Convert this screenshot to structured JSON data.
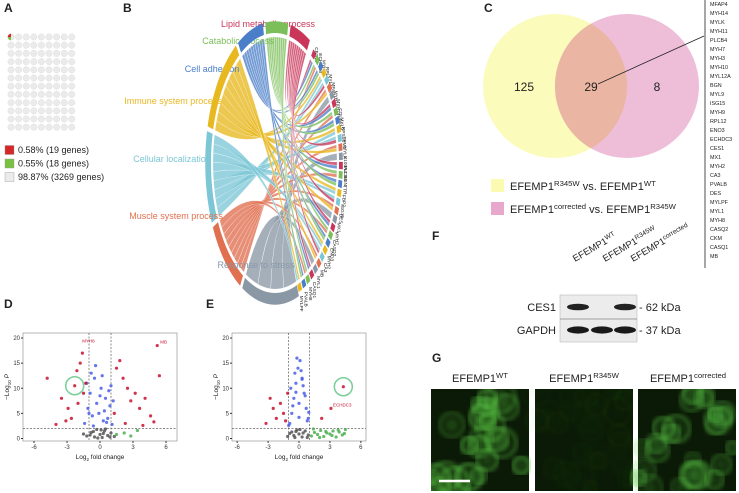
{
  "panel_labels": [
    "A",
    "B",
    "C",
    "D",
    "E",
    "F",
    "G"
  ],
  "waffle": {
    "legend": [
      {
        "label": "0.58% (19 genes)",
        "color": "#d62728"
      },
      {
        "label": "0.55% (18 genes)",
        "color": "#7ac142"
      },
      {
        "label": "98.87% (3269 genes)",
        "color": "#ebebeb"
      }
    ]
  },
  "chord": {
    "processes": [
      {
        "name": "Lipid metabolic process",
        "color": "#c9365a"
      },
      {
        "name": "Catabolic process",
        "color": "#7cbf5a"
      },
      {
        "name": "Cell adhesion",
        "color": "#4a7ec8"
      },
      {
        "name": "Immune system process",
        "color": "#e8b820"
      },
      {
        "name": "Cellular localization",
        "color": "#7cc6d6"
      },
      {
        "name": "Muscle system process",
        "color": "#e07050"
      },
      {
        "name": "Response to stress",
        "color": "#8a98a6"
      }
    ],
    "genes": [
      "CES1",
      "ECHDC3",
      "MYH11",
      "RPL12",
      "MYL12A",
      "MFAP4",
      "MYH10",
      "MYH14",
      "COL4A1",
      "MYL9",
      "RPS15",
      "TPM1",
      "MYLK",
      "S100A4",
      "PLCB4",
      "BGN",
      "TTR",
      "FBP2",
      "ISG15",
      "DES",
      "MX1",
      "MYH7",
      "CASQ2",
      "ENO3",
      "MYH2",
      "CA3",
      "MB",
      "MYL1",
      "CASQ1",
      "MYH8",
      "PVALB",
      "MYLPF"
    ]
  },
  "venn": {
    "counts": [
      125,
      29,
      8
    ],
    "colors": [
      "#fafab0",
      "#e8a8cc"
    ],
    "overlap_genes": [
      "MFAP4",
      "MYH14",
      "MYLK",
      "MYH11",
      "PLCB4",
      "MYH7",
      "MYH3",
      "MYH10",
      "MYL12A",
      "BGN",
      "MYL9",
      "ISG15",
      "MYH9",
      "RPL12",
      "ENO3",
      "ECHDC3",
      "CES1",
      "MX1",
      "MYH2",
      "CA3",
      "PVALB",
      "DES",
      "MYLPF",
      "MYL1",
      "MYH8",
      "CASQ2",
      "CKM",
      "CASQ1",
      "MB"
    ],
    "legend": [
      [
        "EFEMP1",
        "R345W",
        " vs. EFEMP1",
        "WT"
      ],
      [
        "EFEMP1",
        "corrected",
        " vs. EFEMP1",
        "R345W"
      ]
    ]
  },
  "volcano": [
    {
      "xlim": [
        -7,
        7
      ],
      "ylim": [
        -0.5,
        21
      ],
      "xticks": [
        -6,
        -3,
        0,
        3,
        6
      ],
      "yticks": [
        0,
        5,
        10,
        15,
        20
      ],
      "x_label": [
        "Log",
        "2",
        " fold change"
      ],
      "y_label": [
        "−Log",
        "10",
        " P"
      ],
      "thresholds": {
        "x": [
          -1,
          1
        ],
        "y": 2
      },
      "highlight": [
        -2.3,
        10.5
      ],
      "groups": [
        {
          "color": "#555555",
          "x": [
            -1.2,
            -0.8,
            -0.5,
            -0.3,
            0,
            0.2,
            0.4,
            0.7,
            1,
            1.3,
            -1.5,
            0.1,
            -0.2,
            0.5,
            0.9,
            -0.9,
            0.3,
            -0.6
          ],
          "y": [
            0.5,
            1.2,
            0.3,
            1.8,
            0.8,
            0.2,
            1.5,
            0.6,
            1.1,
            0.4,
            0.9,
            1.7,
            0.1,
            1.9,
            0.3,
            0.7,
            1,
            1.4
          ]
        },
        {
          "color": "#4a5ee8",
          "x": [
            -1.4,
            -1.1,
            -0.9,
            -0.7,
            -0.5,
            -0.3,
            -0.1,
            0.1,
            0.3,
            0.5,
            0.7,
            0.9,
            1.1,
            -1.2,
            -0.8,
            -0.4,
            0,
            0.4,
            0.8,
            1.2,
            -0.6,
            0.2,
            0.6,
            -1,
            1
          ],
          "y": [
            3,
            6,
            9,
            4.5,
            12,
            7,
            5,
            10,
            3.5,
            8,
            4,
            6.5,
            2.8,
            11,
            13,
            14.5,
            8.5,
            5.5,
            9.5,
            7.5,
            2.5,
            12.5,
            3.2,
            5,
            10.5
          ]
        },
        {
          "color": "#c8102e",
          "x": [
            -4.8,
            -3.5,
            -2.9,
            -2.6,
            -2.3,
            -2.1,
            -1.8,
            -1.6,
            -1.3,
            -2,
            -3.1,
            -4,
            -1.5,
            1.5,
            1.8,
            2.1,
            2.5,
            2.8,
            3.2,
            3.6,
            4.1,
            4.6,
            5.2,
            5.4,
            1.3,
            2.3,
            3.9,
            4.9
          ],
          "y": [
            12,
            8,
            6,
            4,
            10.5,
            13.5,
            15,
            17,
            11,
            7,
            3.5,
            2.8,
            9,
            14,
            15.5,
            12,
            10,
            7.5,
            9,
            6,
            8,
            4.5,
            18.5,
            12.5,
            5,
            3,
            2.6,
            3.3
          ]
        },
        {
          "color": "#4caf50",
          "x": [
            1.5,
            2.2,
            2.8,
            3.4
          ],
          "y": [
            0.8,
            1.1,
            0.5,
            1.6
          ]
        }
      ],
      "point_labels": [
        {
          "text": "MB",
          "x": 5.3,
          "y": 18.5
        },
        {
          "text": "MYH8",
          "x": -1.8,
          "y": 18.7
        }
      ]
    },
    {
      "xlim": [
        -6.5,
        6.5
      ],
      "ylim": [
        -0.5,
        21
      ],
      "xticks": [
        -6,
        -3,
        0,
        3,
        6
      ],
      "yticks": [
        0,
        5,
        10,
        15,
        20
      ],
      "x_label": [
        "Log",
        "2",
        " fold change"
      ],
      "y_label": [
        "−Log",
        "10",
        " P"
      ],
      "thresholds": {
        "x": [
          -1,
          1
        ],
        "y": 2
      },
      "highlight": [
        4.3,
        10.3
      ],
      "groups": [
        {
          "color": "#555555",
          "x": [
            -1.1,
            -0.7,
            -0.4,
            -0.2,
            0,
            0.3,
            0.6,
            0.9,
            -0.9,
            0.1,
            -0.5,
            0.4,
            0.8,
            -0.3
          ],
          "y": [
            0.4,
            1.3,
            0.2,
            1.7,
            0.9,
            0.3,
            1.5,
            0.7,
            1,
            1.8,
            0.6,
            1.1,
            0.2,
            1.4
          ]
        },
        {
          "color": "#4a5ee8",
          "x": [
            -0.9,
            -0.7,
            -0.5,
            -0.3,
            -0.1,
            0.1,
            0.3,
            0.5,
            0.7,
            0.9,
            -0.8,
            -0.4,
            0,
            0.4,
            0.8,
            -0.6,
            -0.2,
            0.2,
            0.6,
            -1,
            0.95,
            0,
            -0.3,
            0.3
          ],
          "y": [
            3,
            5,
            8,
            11,
            14,
            15.5,
            12,
            9,
            6,
            4,
            10,
            13,
            7,
            10.5,
            3.5,
            6.5,
            16,
            13.5,
            8.5,
            2.6,
            5.2,
            4.2,
            9.2,
            11.8
          ]
        },
        {
          "color": "#c8102e",
          "x": [
            -2.8,
            -2.5,
            -2.2,
            -1.8,
            -1.5,
            -1.3,
            -3.2,
            4.3,
            3.1,
            -1.1,
            2.2
          ],
          "y": [
            8,
            6,
            4,
            7,
            5,
            3.5,
            3,
            10.3,
            6,
            9,
            4
          ]
        },
        {
          "color": "#4caf50",
          "x": [
            1.2,
            1.5,
            1.8,
            2.1,
            2.4,
            2.7,
            3,
            3.3,
            3.6,
            3.9,
            4.2,
            4.5,
            1.4,
            2,
            2.6,
            3.2,
            3.8,
            4.4
          ],
          "y": [
            0.5,
            1.2,
            0.8,
            1.6,
            0.4,
            1.1,
            0.9,
            1.5,
            0.3,
            1.3,
            0.7,
            1.8,
            1.9,
            0.2,
            1.4,
            0.6,
            1.7,
            1
          ]
        }
      ],
      "point_labels": [
        {
          "text": "ECHDC3",
          "x": 3.1,
          "y": 6
        }
      ]
    }
  ],
  "blot": {
    "columns": [
      [
        "EFEMP1",
        "WT"
      ],
      [
        "EFEMP1",
        "R345W"
      ],
      [
        "EFEMP1",
        "corrected"
      ]
    ],
    "rows": [
      "CES1",
      "GAPDH"
    ],
    "markers": [
      "- 62 kDa",
      "- 37 kDa"
    ]
  },
  "microscopy": {
    "columns": [
      [
        "EFEMP1",
        "WT"
      ],
      [
        "EFEMP1",
        "R345W"
      ],
      [
        "EFEMP1",
        "corrected"
      ]
    ]
  }
}
